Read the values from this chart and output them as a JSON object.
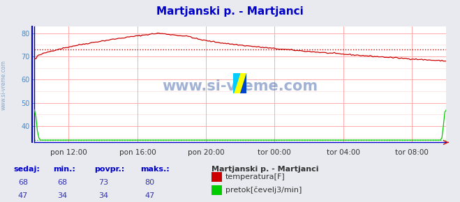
{
  "title": "Martjanski p. - Martjanci",
  "outer_bg_color": "#e8eaf0",
  "plot_bg_color": "#ffffff",
  "grid_color_major": "#ffaaaa",
  "grid_color_minor": "#ffdddd",
  "vert_grid_color": "#ffaaaa",
  "x_ticks_labels": [
    "pon 12:00",
    "pon 16:00",
    "pon 20:00",
    "tor 00:00",
    "tor 04:00",
    "tor 08:00"
  ],
  "x_ticks_pos": [
    0.083,
    0.25,
    0.417,
    0.583,
    0.75,
    0.917
  ],
  "ylim": [
    33,
    83
  ],
  "yticks": [
    40,
    50,
    60,
    70,
    80
  ],
  "temp_color": "#cc0000",
  "flow_color": "#00cc00",
  "watermark": "www.si-vreme.com",
  "watermark_color": "#4466aa",
  "left_label_color": "#4488cc",
  "title_color": "#0000cc",
  "table_header_color": "#0000cc",
  "table_value_color": "#3333aa",
  "axis_color": "#0000cc",
  "table_headers": [
    "sedaj:",
    "min.:",
    "povpr.:",
    "maks.:"
  ],
  "table_temp": [
    "68",
    "68",
    "73",
    "80"
  ],
  "table_flow": [
    "47",
    "34",
    "34",
    "47"
  ],
  "legend_title": "Martjanski p. - Martjanci",
  "legend_items": [
    "temperatura[F]",
    "pretok[čevelj3/min]"
  ],
  "legend_colors": [
    "#cc0000",
    "#00cc00"
  ],
  "temp_avg_value": 73,
  "flow_avg_value": 34,
  "n_points": 288
}
